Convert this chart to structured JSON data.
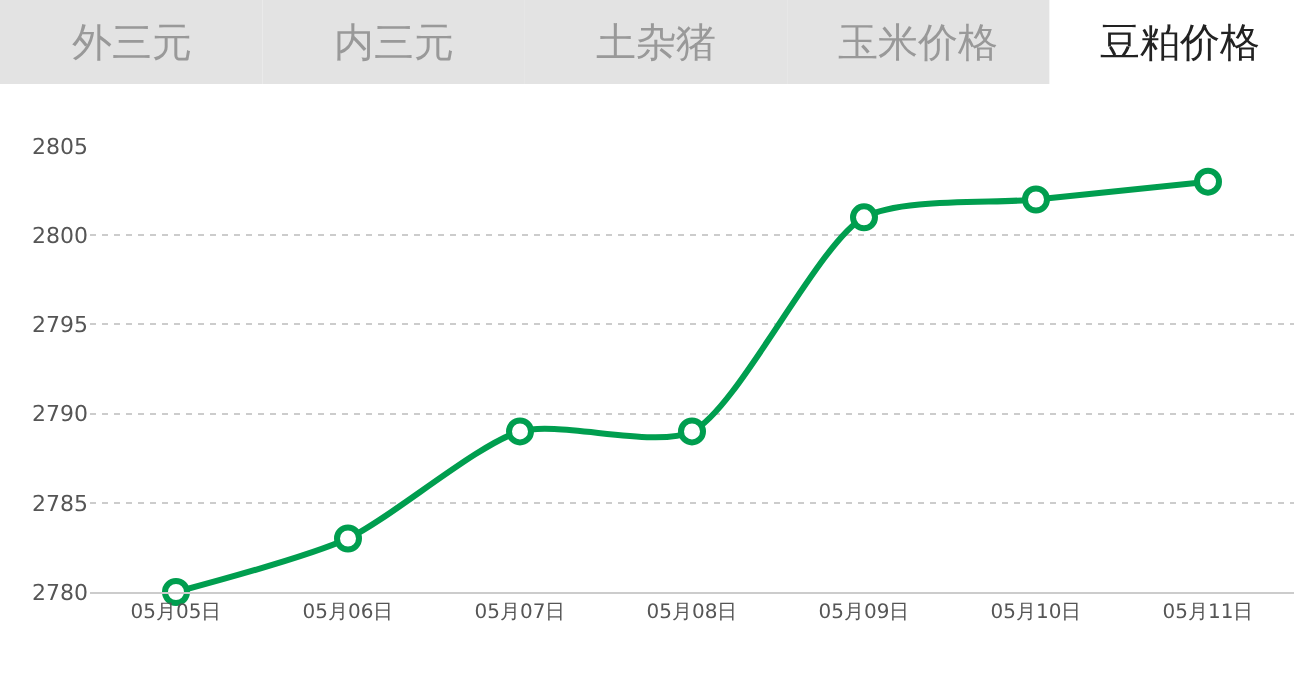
{
  "chart_data": {
    "type": "line",
    "annotations": [
      "外三元",
      "内三元",
      "土杂猪",
      "玉米价格",
      "豆粕价格"
    ],
    "categories": [
      "05月05日",
      "05月06日",
      "05月07日",
      "05月08日",
      "05月09日",
      "05月10日",
      "05月11日"
    ],
    "series": [
      {
        "color": "#009e4f",
        "values": [
          2780,
          2783,
          2789,
          2789,
          2801,
          2802,
          2803
        ]
      }
    ],
    "ylim": [
      2780,
      2805
    ],
    "yticks": [
      2780,
      2785,
      2790,
      2795,
      2800,
      2805
    ],
    "grid": "y",
    "marker": "circle",
    "line_style": "solid",
    "legend": false
  }
}
